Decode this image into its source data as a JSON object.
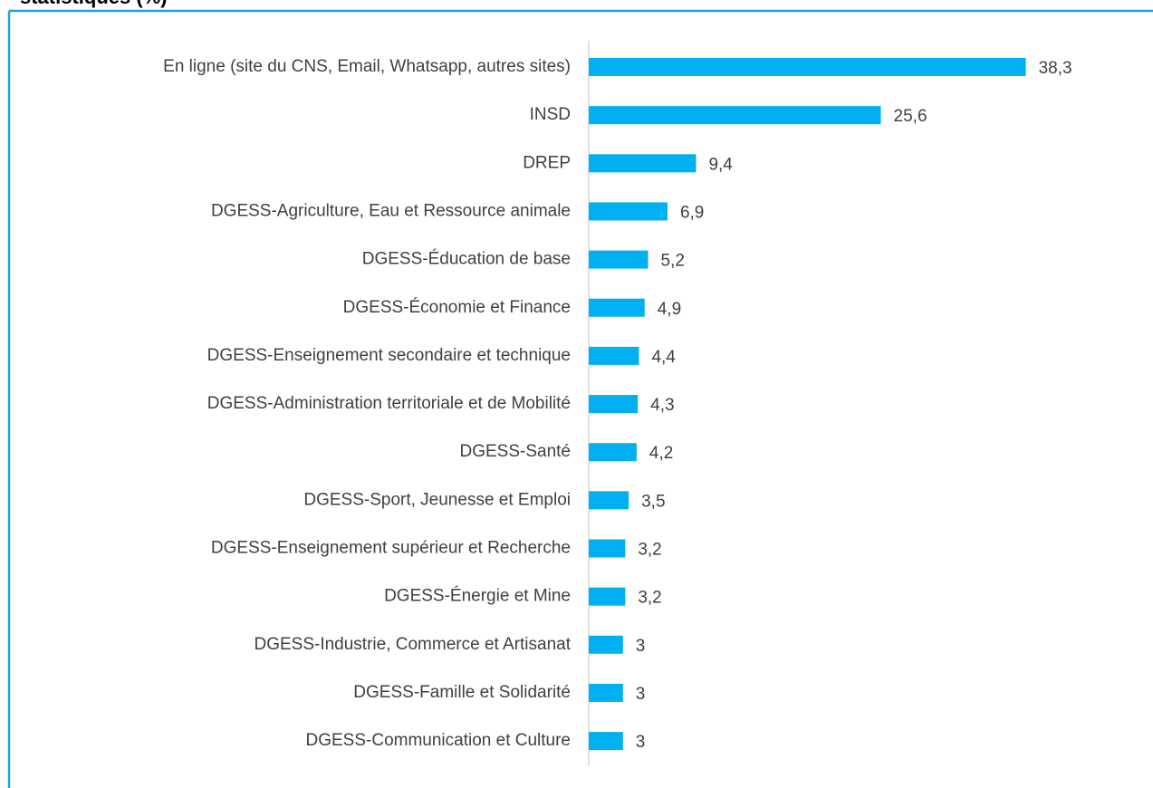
{
  "chart_data": {
    "type": "bar",
    "orientation": "horizontal",
    "title": "statistiques (%)",
    "categories": [
      "En ligne (site du CNS, Email, Whatsapp, autres sites)",
      "INSD",
      "DREP",
      "DGESS-Agriculture, Eau et Ressource animale",
      "DGESS-Éducation de base",
      "DGESS-Économie et Finance",
      "DGESS-Enseignement secondaire et technique",
      "DGESS-Administration territoriale et de Mobilité",
      "DGESS-Santé",
      "DGESS-Sport, Jeunesse et Emploi",
      "DGESS-Enseignement supérieur et Recherche",
      "DGESS-Énergie et Mine",
      "DGESS-Industrie, Commerce et Artisanat",
      "DGESS-Famille et Solidarité",
      "DGESS-Communication et Culture"
    ],
    "values": [
      38.3,
      25.6,
      9.4,
      6.9,
      5.2,
      4.9,
      4.4,
      4.3,
      4.2,
      3.5,
      3.2,
      3.2,
      3,
      3,
      3
    ],
    "value_labels": [
      "38,3",
      "25,6",
      "9,4",
      "6,9",
      "5,2",
      "4,9",
      "4,4",
      "4,3",
      "4,2",
      "3,5",
      "3,2",
      "3,2",
      "3",
      "3",
      "3"
    ],
    "color": "#00b0f0"
  }
}
